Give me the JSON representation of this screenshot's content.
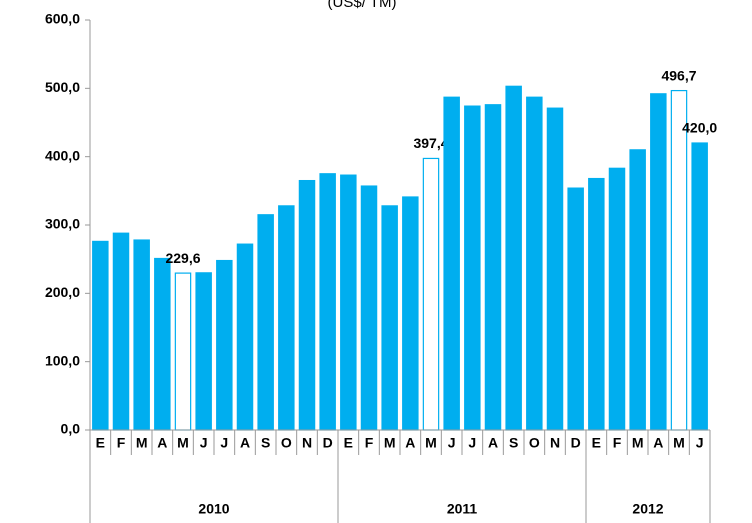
{
  "chart_data": {
    "type": "bar",
    "subtitle": "(US$/ TM)",
    "category_groups": [
      {
        "name": "2010",
        "categories": [
          "E",
          "F",
          "M",
          "A",
          "M",
          "J",
          "J",
          "A",
          "S",
          "O",
          "N",
          "D"
        ]
      },
      {
        "name": "2011",
        "categories": [
          "E",
          "F",
          "M",
          "A",
          "M",
          "J",
          "J",
          "A",
          "S",
          "O",
          "N",
          "D"
        ]
      },
      {
        "name": "2012",
        "categories": [
          "E",
          "F",
          "M",
          "A",
          "M",
          "J"
        ]
      }
    ],
    "values": [
      276,
      288,
      278,
      251,
      229.6,
      230,
      248,
      272,
      315,
      328,
      365,
      375,
      373,
      357,
      328,
      341,
      397.4,
      487,
      474,
      476,
      503,
      487,
      471,
      354,
      368,
      383,
      410,
      492,
      496.7,
      420
    ],
    "value_labels": [
      null,
      null,
      null,
      null,
      "229,6",
      null,
      null,
      null,
      null,
      null,
      null,
      null,
      null,
      null,
      null,
      null,
      "397,4",
      null,
      null,
      null,
      null,
      null,
      null,
      null,
      null,
      null,
      null,
      null,
      "496,7",
      "420,0"
    ],
    "color": "#00aeef",
    "bar_fills": [
      "#00aeef",
      "#00aeef",
      "#00aeef",
      "#00aeef",
      "#ffffff",
      "#00aeef",
      "#00aeef",
      "#00aeef",
      "#00aeef",
      "#00aeef",
      "#00aeef",
      "#00aeef",
      "#00aeef",
      "#00aeef",
      "#00aeef",
      "#00aeef",
      "#ffffff",
      "#00aeef",
      "#00aeef",
      "#00aeef",
      "#00aeef",
      "#00aeef",
      "#00aeef",
      "#00aeef",
      "#00aeef",
      "#00aeef",
      "#00aeef",
      "#00aeef",
      "#ffffff",
      "#00aeef"
    ],
    "ylim": [
      0,
      600
    ],
    "yticks": [
      {
        "value": 0,
        "label": "0,0"
      },
      {
        "value": 100,
        "label": "100,0"
      },
      {
        "value": 200,
        "label": "200,0"
      },
      {
        "value": 300,
        "label": "300,0"
      },
      {
        "value": 400,
        "label": "400,0"
      },
      {
        "value": 500,
        "label": "500,0"
      },
      {
        "value": 600,
        "label": "600,0"
      }
    ]
  }
}
